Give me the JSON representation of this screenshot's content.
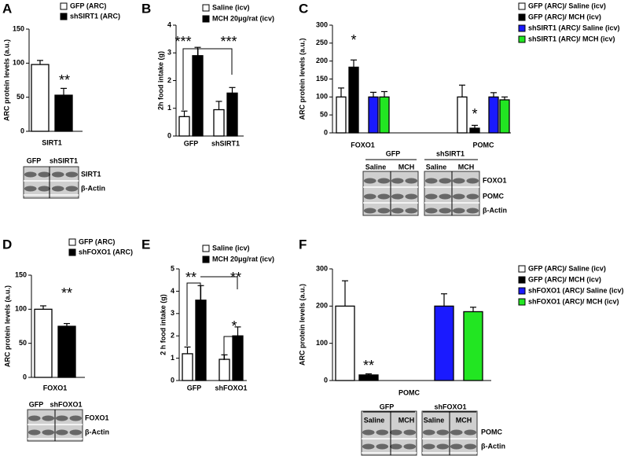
{
  "chart_data": [
    {
      "panel": "A",
      "type": "bar",
      "ylabel": "ARC protein levels (a.u.)",
      "categories": [
        "SIRT1"
      ],
      "series": [
        {
          "name": "GFP (ARC)",
          "color": "#ffffff",
          "values": [
            98
          ],
          "errors": [
            6
          ]
        },
        {
          "name": "shSIRT1 (ARC)",
          "color": "#000000",
          "values": [
            53
          ],
          "errors": [
            10
          ]
        }
      ],
      "ylim": [
        0,
        150
      ],
      "yticks": [
        0,
        50,
        100,
        150
      ],
      "annotations": [
        "**"
      ],
      "blot": {
        "groups": [
          "GFP",
          "shSIRT1"
        ],
        "proteins": [
          "SIRT1",
          "β-Actin"
        ]
      }
    },
    {
      "panel": "B",
      "type": "bar",
      "ylabel": "2h food intake (g)",
      "categories": [
        "GFP",
        "shSIRT1"
      ],
      "series": [
        {
          "name": "Saline (icv)",
          "color": "#ffffff",
          "values": [
            0.7,
            0.95
          ],
          "errors": [
            0.2,
            0.3
          ]
        },
        {
          "name": "MCH 20μg/rat (icv)",
          "color": "#000000",
          "values": [
            2.9,
            1.55
          ],
          "errors": [
            0.3,
            0.2
          ]
        }
      ],
      "ylim": [
        0,
        4
      ],
      "yticks": [
        0,
        1,
        2,
        3,
        4
      ],
      "annotations": [
        "***",
        "***"
      ]
    },
    {
      "panel": "C",
      "type": "bar",
      "ylabel": "ARC protein levels (a.u.)",
      "categories": [
        "FOXO1",
        "POMC"
      ],
      "series": [
        {
          "name": "GFP (ARC)/ Saline (icv)",
          "color": "#ffffff",
          "values": [
            100,
            100
          ],
          "errors": [
            25,
            33
          ]
        },
        {
          "name": "GFP (ARC)/ MCH (icv)",
          "color": "#000000",
          "values": [
            183,
            13
          ],
          "errors": [
            20,
            8
          ]
        },
        {
          "name": "shSIRT1 (ARC)/ Saline (icv)",
          "color": "#1a1aff",
          "values": [
            100,
            100
          ],
          "errors": [
            13,
            12
          ]
        },
        {
          "name": "shSIRT1 (ARC)/ MCH (icv)",
          "color": "#22e622",
          "values": [
            100,
            92
          ],
          "errors": [
            15,
            8
          ]
        }
      ],
      "ylim": [
        0,
        300
      ],
      "yticks": [
        0,
        50,
        100,
        150,
        200,
        250,
        300
      ],
      "annotations": [
        "*",
        "*"
      ],
      "blot": {
        "groups": [
          "GFP",
          "shSIRT1"
        ],
        "lanes": [
          "Saline",
          "MCH",
          "Saline",
          "MCH"
        ],
        "proteins": [
          "FOXO1",
          "POMC",
          "β-Actin"
        ]
      }
    },
    {
      "panel": "D",
      "type": "bar",
      "ylabel": "ARC protein levels (a.u.)",
      "categories": [
        "FOXO1"
      ],
      "series": [
        {
          "name": "GFP (ARC)",
          "color": "#ffffff",
          "values": [
            100
          ],
          "errors": [
            5
          ]
        },
        {
          "name": "shFOXO1 (ARC)",
          "color": "#000000",
          "values": [
            75
          ],
          "errors": [
            4
          ]
        }
      ],
      "ylim": [
        0,
        150
      ],
      "yticks": [
        0,
        50,
        100,
        150
      ],
      "annotations": [
        "**"
      ],
      "blot": {
        "groups": [
          "GFP",
          "shFOXO1"
        ],
        "proteins": [
          "FOXO1",
          "β-Actin"
        ]
      }
    },
    {
      "panel": "E",
      "type": "bar",
      "ylabel": "2 h food intake (g)",
      "categories": [
        "GFP",
        "shFOXO1"
      ],
      "series": [
        {
          "name": "Saline (icv)",
          "color": "#ffffff",
          "values": [
            1.2,
            0.95
          ],
          "errors": [
            0.3,
            0.2
          ]
        },
        {
          "name": "MCH 20μg/rat (icv)",
          "color": "#000000",
          "values": [
            3.6,
            2.0
          ],
          "errors": [
            0.65,
            0.4
          ]
        }
      ],
      "ylim": [
        0,
        5
      ],
      "yticks": [
        0,
        1,
        2,
        3,
        4,
        5
      ],
      "annotations": [
        "**",
        "**",
        "*"
      ]
    },
    {
      "panel": "F",
      "type": "bar",
      "ylabel": "ARC protein levels (a.u.)",
      "categories": [
        "POMC"
      ],
      "series": [
        {
          "name": "GFP (ARC)/ Saline (icv)",
          "color": "#ffffff",
          "values": [
            200
          ],
          "errors": [
            68
          ]
        },
        {
          "name": "GFP (ARC)/ MCH (icv)",
          "color": "#000000",
          "values": [
            15
          ],
          "errors": [
            3
          ]
        },
        {
          "name": "shFOXO1 (ARC)/ Saline (icv)",
          "color": "#1a1aff",
          "values": [
            200
          ],
          "errors": [
            33
          ]
        },
        {
          "name": "shFOXO1 (ARC)/ MCH (icv)",
          "color": "#22e622",
          "values": [
            185
          ],
          "errors": [
            12
          ]
        }
      ],
      "ylim": [
        0,
        300
      ],
      "yticks": [
        0,
        100,
        200,
        300
      ],
      "annotations": [
        "**"
      ],
      "blot": {
        "groups": [
          "GFP",
          "shFOXO1"
        ],
        "lanes": [
          "Saline",
          "MCH",
          "Saline",
          "MCH"
        ],
        "proteins": [
          "POMC",
          "β-Actin"
        ]
      }
    }
  ]
}
